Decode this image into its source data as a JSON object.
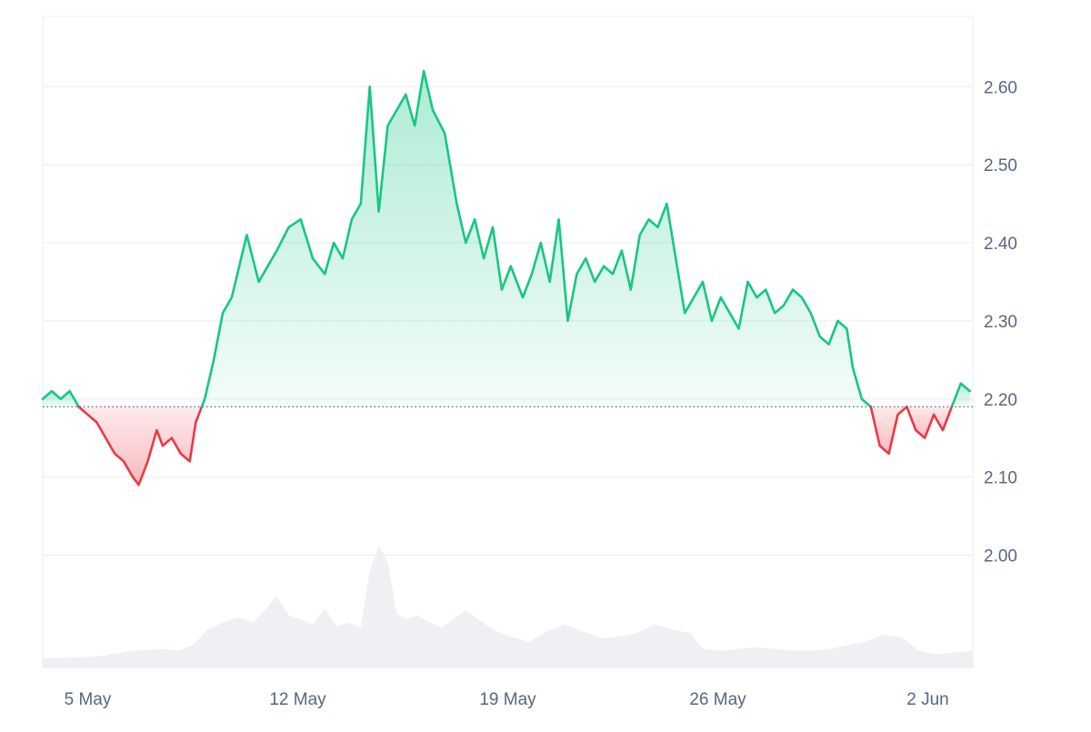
{
  "chart_data": {
    "type": "area",
    "baseline": 2.19,
    "ylim": [
      1.855,
      2.69
    ],
    "y_ticks": [
      "2.60",
      "2.50",
      "2.40",
      "2.30",
      "2.20",
      "2.10",
      "2.00"
    ],
    "y_tick_values": [
      2.6,
      2.5,
      2.4,
      2.3,
      2.2,
      2.1,
      2.0
    ],
    "x_ticks": [
      "5 May",
      "12 May",
      "19 May",
      "26 May",
      "2 Jun"
    ],
    "x_tick_days": [
      1.5,
      8.5,
      15.5,
      22.5,
      29.5
    ],
    "xlim": [
      0,
      31.0
    ],
    "colors": {
      "up_line": "#16c784",
      "down_line": "#ea3943",
      "up_fill": "#16c784",
      "down_fill": "#ea3943",
      "volume": "#eef0f3",
      "grid": "#e9ecef",
      "baseline": "#58667e"
    },
    "series": [
      {
        "x": [
          0.0,
          0.3,
          0.6,
          0.9,
          1.2,
          1.5,
          1.8,
          2.1,
          2.4,
          2.7,
          3.0,
          3.2,
          3.5,
          3.8,
          4.0,
          4.3,
          4.6,
          4.9,
          5.1,
          5.4,
          5.7,
          6.0,
          6.3,
          6.8,
          7.2,
          7.8,
          8.2,
          8.6,
          9.0,
          9.4,
          9.7,
          10.0,
          10.3,
          10.6,
          10.9,
          11.2,
          11.5,
          11.8,
          12.1,
          12.4,
          12.7,
          13.0,
          13.4,
          13.8,
          14.1,
          14.4,
          14.7,
          15.0,
          15.3,
          15.6,
          16.0,
          16.3,
          16.6,
          16.9,
          17.2,
          17.5,
          17.8,
          18.1,
          18.4,
          18.7,
          19.0,
          19.3,
          19.6,
          19.9,
          20.2,
          20.5,
          20.8,
          21.1,
          21.4,
          21.7,
          22.0,
          22.3,
          22.6,
          22.9,
          23.2,
          23.5,
          23.8,
          24.1,
          24.4,
          24.7,
          25.0,
          25.3,
          25.6,
          25.9,
          26.2,
          26.5,
          26.8,
          27.0,
          27.3,
          27.6,
          27.9,
          28.2,
          28.5,
          28.8,
          29.1,
          29.4,
          29.7,
          30.0,
          30.3,
          30.6,
          30.9
        ],
        "y": [
          2.2,
          2.21,
          2.2,
          2.21,
          2.19,
          2.18,
          2.17,
          2.15,
          2.13,
          2.12,
          2.1,
          2.09,
          2.12,
          2.16,
          2.14,
          2.15,
          2.13,
          2.12,
          2.17,
          2.2,
          2.25,
          2.31,
          2.33,
          2.41,
          2.35,
          2.39,
          2.42,
          2.43,
          2.38,
          2.36,
          2.4,
          2.38,
          2.43,
          2.45,
          2.6,
          2.44,
          2.55,
          2.57,
          2.59,
          2.55,
          2.62,
          2.57,
          2.54,
          2.45,
          2.4,
          2.43,
          2.38,
          2.42,
          2.34,
          2.37,
          2.33,
          2.36,
          2.4,
          2.35,
          2.43,
          2.3,
          2.36,
          2.38,
          2.35,
          2.37,
          2.36,
          2.39,
          2.34,
          2.41,
          2.43,
          2.42,
          2.45,
          2.38,
          2.31,
          2.33,
          2.35,
          2.3,
          2.33,
          2.31,
          2.29,
          2.35,
          2.33,
          2.34,
          2.31,
          2.32,
          2.34,
          2.33,
          2.31,
          2.28,
          2.27,
          2.3,
          2.29,
          2.24,
          2.2,
          2.19,
          2.14,
          2.13,
          2.18,
          2.19,
          2.16,
          2.15,
          2.18,
          2.16,
          2.19,
          2.22,
          2.21
        ]
      }
    ],
    "volume": {
      "x": [
        0.0,
        1.0,
        2.0,
        3.0,
        4.0,
        4.5,
        5.0,
        5.5,
        6.0,
        6.5,
        7.0,
        7.4,
        7.8,
        8.2,
        8.6,
        9.0,
        9.4,
        9.8,
        10.2,
        10.6,
        10.9,
        11.2,
        11.5,
        11.8,
        12.1,
        12.5,
        12.9,
        13.3,
        13.7,
        14.1,
        14.5,
        15.0,
        15.6,
        16.2,
        16.8,
        17.4,
        18.0,
        18.6,
        19.2,
        19.8,
        20.4,
        21.0,
        21.6,
        22.0,
        22.6,
        23.2,
        23.8,
        24.4,
        25.0,
        25.6,
        26.2,
        26.8,
        27.4,
        28.0,
        28.6,
        29.2,
        29.8,
        30.4,
        31.0
      ],
      "y": [
        0.012,
        0.012,
        0.014,
        0.02,
        0.022,
        0.02,
        0.026,
        0.044,
        0.052,
        0.058,
        0.052,
        0.066,
        0.082,
        0.06,
        0.056,
        0.05,
        0.068,
        0.048,
        0.052,
        0.046,
        0.11,
        0.14,
        0.12,
        0.062,
        0.056,
        0.06,
        0.052,
        0.046,
        0.056,
        0.066,
        0.056,
        0.044,
        0.036,
        0.03,
        0.042,
        0.05,
        0.042,
        0.034,
        0.036,
        0.04,
        0.05,
        0.044,
        0.04,
        0.022,
        0.02,
        0.022,
        0.024,
        0.022,
        0.02,
        0.02,
        0.022,
        0.026,
        0.03,
        0.038,
        0.036,
        0.02,
        0.016,
        0.018,
        0.02
      ]
    }
  }
}
